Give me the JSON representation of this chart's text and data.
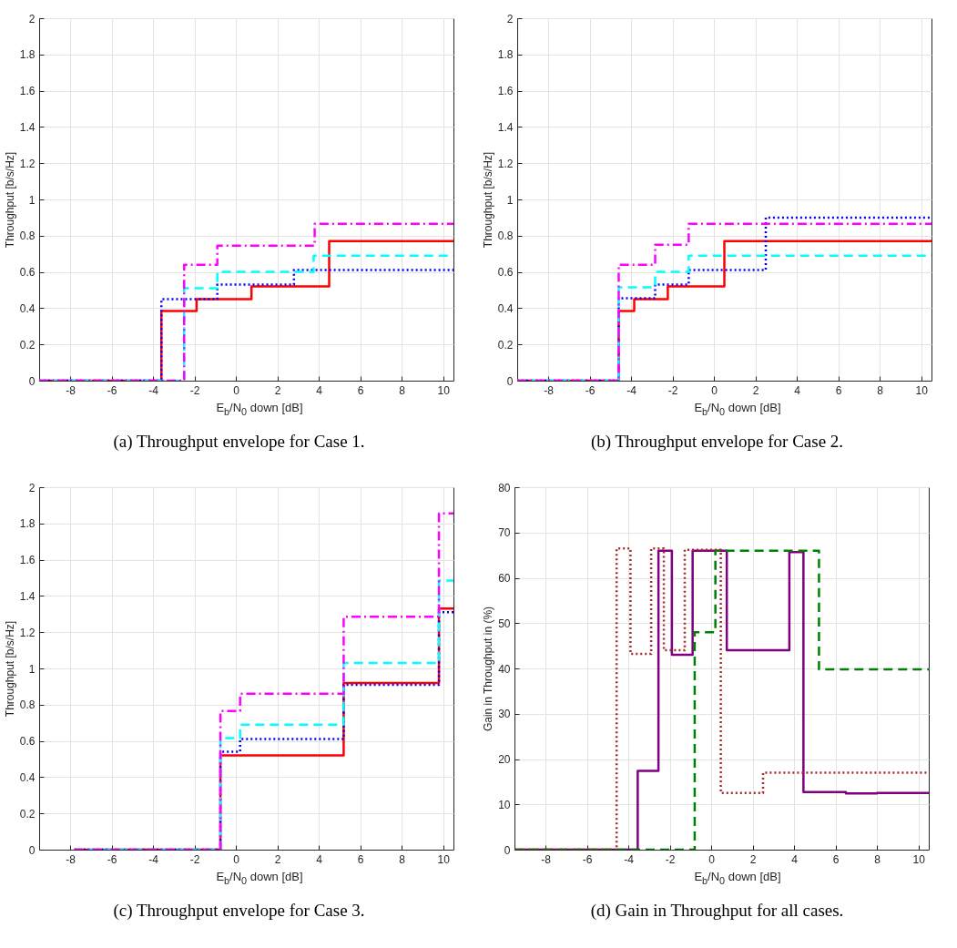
{
  "chart_data": [
    {
      "type": "step",
      "title": "(a) Throughput envelope for Case 1.",
      "xlabel": "E$_{b}$/N$_{0}$ down [dB]",
      "ylabel": "Throughput [b/s/Hz]",
      "xlim": [
        -9.5,
        10.5
      ],
      "xticks": [
        -8,
        -6,
        -4,
        -2,
        0,
        2,
        4,
        6,
        8,
        10
      ],
      "ylim": [
        0,
        2
      ],
      "yticks": [
        0,
        0.2,
        0.4,
        0.6,
        0.8,
        1,
        1.2,
        1.4,
        1.6,
        1.8,
        2
      ],
      "grid": true,
      "legend": false,
      "series": [
        {
          "color": "#ff0000",
          "line_style": "solid",
          "x": [
            -9.5,
            -3.6,
            -1.9,
            0.75,
            4.5,
            10.5
          ],
          "values": [
            0,
            0.385,
            0.45,
            0.52,
            0.77,
            0.77
          ]
        },
        {
          "color": "#0000ff",
          "line_style": "dotted",
          "x": [
            -9.5,
            -3.6,
            -0.9,
            2.8,
            10.5
          ],
          "values": [
            0,
            0.45,
            0.53,
            0.61,
            0.61
          ]
        },
        {
          "color": "#00ffff",
          "line_style": "dashed",
          "x": [
            -9.5,
            -2.5,
            -0.9,
            3.75,
            10.5
          ],
          "values": [
            0,
            0.51,
            0.6,
            0.69,
            0.69
          ]
        },
        {
          "color": "#ff00ff",
          "line_style": "dashdot",
          "x": [
            -9.5,
            -2.5,
            -0.9,
            3.8,
            10.5
          ],
          "values": [
            0,
            0.64,
            0.745,
            0.865,
            0.865
          ]
        }
      ]
    },
    {
      "type": "step",
      "title": "(b) Throughput envelope for Case 2.",
      "xlabel": "E$_{b}$/N$_{0}$ down [dB]",
      "ylabel": "Throughput [b/s/Hz]",
      "xlim": [
        -9.5,
        10.5
      ],
      "xticks": [
        -8,
        -6,
        -4,
        -2,
        0,
        2,
        4,
        6,
        8,
        10
      ],
      "ylim": [
        0,
        2
      ],
      "yticks": [
        0,
        0.2,
        0.4,
        0.6,
        0.8,
        1,
        1.2,
        1.4,
        1.6,
        1.8,
        2
      ],
      "grid": true,
      "legend": false,
      "series": [
        {
          "color": "#ff0000",
          "line_style": "solid",
          "x": [
            -9.5,
            -4.6,
            -3.85,
            -2.23,
            0.5,
            10.5
          ],
          "values": [
            0,
            0.385,
            0.45,
            0.52,
            0.77,
            0.77
          ]
        },
        {
          "color": "#0000ff",
          "line_style": "dotted",
          "x": [
            -9.5,
            -4.6,
            -2.84,
            -1.22,
            2.5,
            10.5
          ],
          "values": [
            0,
            0.455,
            0.53,
            0.61,
            0.9,
            0.9
          ]
        },
        {
          "color": "#00ffff",
          "line_style": "dashed",
          "x": [
            -9.5,
            -4.6,
            -2.84,
            -1.22,
            10.5
          ],
          "values": [
            0,
            0.515,
            0.6,
            0.69,
            0.69
          ]
        },
        {
          "color": "#ff00ff",
          "line_style": "dashdot",
          "x": [
            -9.5,
            -4.6,
            -2.84,
            -1.22,
            10.5
          ],
          "values": [
            0,
            0.64,
            0.75,
            0.865,
            0.865
          ]
        }
      ]
    },
    {
      "type": "step",
      "title": "(c) Throughput envelope for Case 3.",
      "xlabel": "E$_{b}$/N$_{0}$ down [dB]",
      "ylabel": "Throughput [b/s/Hz]",
      "xlim": [
        -9.5,
        10.5
      ],
      "xticks": [
        -8,
        -6,
        -4,
        -2,
        0,
        2,
        4,
        6,
        8,
        10
      ],
      "ylim": [
        0,
        2
      ],
      "yticks": [
        0,
        0.2,
        0.4,
        0.6,
        0.8,
        1,
        1.2,
        1.4,
        1.6,
        1.8,
        2
      ],
      "grid": true,
      "legend": false,
      "series": [
        {
          "color": "#ff0000",
          "line_style": "solid",
          "x": [
            -7.8,
            -0.75,
            5.2,
            9.8,
            10.5
          ],
          "values": [
            0,
            0.52,
            0.92,
            1.33,
            1.33
          ]
        },
        {
          "color": "#0000ff",
          "line_style": "dotted",
          "x": [
            -7.8,
            -0.75,
            0.2,
            5.2,
            9.8,
            10.5
          ],
          "values": [
            0,
            0.54,
            0.61,
            0.91,
            1.31,
            1.31
          ]
        },
        {
          "color": "#00ffff",
          "line_style": "dashed",
          "x": [
            -7.8,
            -0.75,
            0.2,
            5.2,
            9.8,
            10.5
          ],
          "values": [
            0,
            0.615,
            0.69,
            1.03,
            1.485,
            1.485
          ]
        },
        {
          "color": "#ff00ff",
          "line_style": "dashdot",
          "x": [
            -7.8,
            -0.75,
            0.2,
            5.2,
            9.8,
            10.5
          ],
          "values": [
            0,
            0.765,
            0.86,
            1.285,
            1.855,
            1.855
          ]
        }
      ]
    },
    {
      "type": "step",
      "title": "(d) Gain in Throughput for all cases.",
      "xlabel": "E$_{b}$/N$_{0}$ down [dB]",
      "ylabel": "Gain in Throughput in (%)",
      "xlim": [
        -9.5,
        10.5
      ],
      "xticks": [
        -8,
        -6,
        -4,
        -2,
        0,
        2,
        4,
        6,
        8,
        10
      ],
      "ylim": [
        0,
        80
      ],
      "yticks": [
        0,
        10,
        20,
        30,
        40,
        50,
        60,
        70,
        80
      ],
      "grid": true,
      "legend": false,
      "series": [
        {
          "color": "#800080",
          "line_style": "solid",
          "x": [
            -9.5,
            -3.55,
            -2.55,
            -1.9,
            -0.9,
            0.75,
            3.77,
            4.45,
            6.5,
            8,
            10.5
          ],
          "values": [
            0,
            17.4,
            66,
            43,
            66,
            44,
            65.7,
            12.7,
            12.4,
            12.5,
            12.3
          ]
        },
        {
          "color": "#008000",
          "line_style": "dashed",
          "x": [
            -9.5,
            -0.8,
            0.2,
            5.2,
            10.5
          ],
          "values": [
            0,
            48,
            66,
            39.8,
            39.8
          ]
        },
        {
          "color": "#a52a2a",
          "line_style": "dotted",
          "x": [
            -9.5,
            -4.57,
            -3.9,
            -2.9,
            -2.29,
            -1.28,
            0.46,
            2.5,
            10.5
          ],
          "values": [
            0,
            66.5,
            43.2,
            66.5,
            44,
            66.2,
            12.5,
            17,
            17
          ]
        }
      ]
    }
  ]
}
